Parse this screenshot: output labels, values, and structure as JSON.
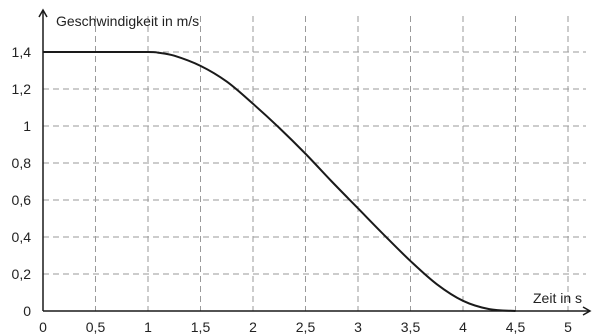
{
  "chart_data": {
    "type": "line",
    "title": "",
    "xlabel": "Zeit in s",
    "ylabel": "Geschwindigkeit in m/s",
    "xlim": [
      0,
      5.2
    ],
    "ylim": [
      0,
      1.45
    ],
    "grid": true,
    "x_ticks": [
      0,
      0.5,
      1,
      1.5,
      2,
      2.5,
      3,
      3.5,
      4,
      4.5,
      5
    ],
    "x_tick_labels": [
      "0",
      "0,5",
      "1",
      "1,5",
      "2",
      "2,5",
      "3",
      "3,5",
      "4",
      "4,5",
      "5"
    ],
    "y_ticks": [
      0,
      0.2,
      0.4,
      0.6,
      0.8,
      1,
      1.2,
      1.4
    ],
    "y_tick_labels": [
      "0",
      "0,2",
      "0,4",
      "0,6",
      "0,8",
      "1",
      "1,2",
      "1,4"
    ],
    "series": [
      {
        "x": [
          0,
          0.5,
          1,
          1.1,
          1.25,
          1.5,
          1.75,
          2,
          2.25,
          2.5,
          2.75,
          3,
          3.25,
          3.5,
          3.75,
          4,
          4.25,
          4.5
        ],
        "y": [
          1.4,
          1.4,
          1.4,
          1.396,
          1.38,
          1.325,
          1.24,
          1.12,
          0.99,
          0.85,
          0.7,
          0.555,
          0.41,
          0.27,
          0.145,
          0.055,
          0.01,
          0
        ]
      }
    ],
    "colors": {
      "line": "#1a1a1a",
      "grid": "#9a9a9a",
      "axis": "#1a1a1a"
    }
  }
}
